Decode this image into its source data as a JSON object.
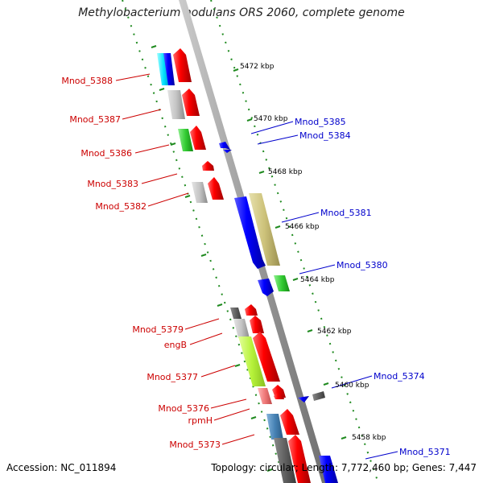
{
  "title": "Methylobacterium nodulans ORS 2060, complete genome",
  "footer": {
    "accession": "Accession: NC_011894",
    "topology": "Topology: circular; Length: 7,772,460 bp; Genes: 7,447"
  },
  "colors": {
    "forward_label": "#cc0000",
    "reverse_label": "#0000cc",
    "tick_green": "#228b22",
    "backbone": "#a8a8a8"
  },
  "scale_ticks": [
    "5472 kbp",
    "5470 kbp",
    "5468 kbp",
    "5466 kbp",
    "5464 kbp",
    "5462 kbp",
    "5460 kbp",
    "5458 kbp"
  ],
  "gene_labels_forward": [
    "Mnod_5388",
    "Mnod_5387",
    "Mnod_5386",
    "Mnod_5383",
    "Mnod_5382",
    "Mnod_5379",
    "engB",
    "Mnod_5377",
    "Mnod_5376",
    "rpmH",
    "Mnod_5373"
  ],
  "gene_labels_reverse": [
    "Mnod_5385",
    "Mnod_5384",
    "Mnod_5381",
    "Mnod_5380",
    "Mnod_5374",
    "Mnod_5371"
  ]
}
